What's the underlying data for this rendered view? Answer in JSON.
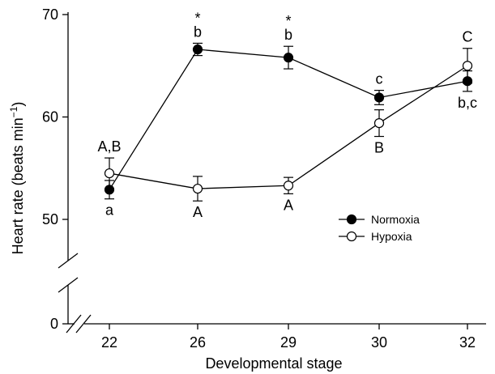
{
  "chart_data": {
    "type": "line",
    "xlabel": "Developmental stage",
    "ylabel": "Heart rate (beats min",
    "ylabel_sup": "−1",
    "ylabel_close": ")",
    "categories": [
      "22",
      "26",
      "29",
      "30",
      "32"
    ],
    "y_ticks": [
      "0",
      "50",
      "60",
      "70"
    ],
    "y_axis_break": {
      "from": 0,
      "to": 45
    },
    "ylim": [
      45,
      70
    ],
    "series": [
      {
        "name": "Normoxia",
        "marker": "filled-circle",
        "values": [
          52.9,
          66.6,
          65.8,
          61.9,
          63.5
        ],
        "errors": [
          0.9,
          0.6,
          1.1,
          0.7,
          1.0
        ],
        "labels": [
          "a",
          "b",
          "b",
          "c",
          "b,c"
        ],
        "label_pos": [
          "below",
          "above",
          "above",
          "above",
          "below"
        ],
        "stars": [
          "",
          "*",
          "*",
          "",
          ""
        ]
      },
      {
        "name": "Hypoxia",
        "marker": "open-circle",
        "values": [
          54.5,
          53.0,
          53.3,
          59.4,
          65.0
        ],
        "errors": [
          1.5,
          1.2,
          0.8,
          1.3,
          1.7
        ],
        "labels": [
          "A,B",
          "A",
          "A",
          "B",
          "C"
        ],
        "label_pos": [
          "above",
          "below",
          "below",
          "below",
          "above"
        ]
      }
    ],
    "legend": {
      "placement": "center-right",
      "entries": [
        "Normoxia",
        "Hypoxia"
      ]
    },
    "grid": false
  }
}
